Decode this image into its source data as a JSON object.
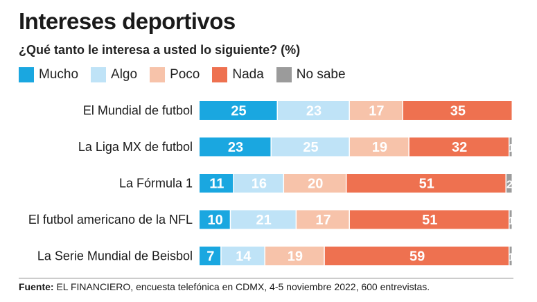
{
  "title": "Intereses deportivos",
  "subtitle": "¿Qué tanto le interesa a usted lo siguiente? (%)",
  "source_label": "Fuente:",
  "source_text": " EL FINANCIERO, encuesta telefónica en CDMX, 4-5 noviembre 2022, 600 entrevistas.",
  "legend": [
    {
      "name": "Mucho",
      "color": "#1aa7e0"
    },
    {
      "name": "Algo",
      "color": "#bfe3f7"
    },
    {
      "name": "Poco",
      "color": "#f7c3aa"
    },
    {
      "name": "Nada",
      "color": "#ee7150"
    },
    {
      "name": "No sabe",
      "color": "#9b9b9b"
    }
  ],
  "chart_data": {
    "type": "bar",
    "orientation": "horizontal",
    "stacked": true,
    "categories": [
      "El Mundial de futbol",
      "La Liga MX de futbol",
      "La Fórmula 1",
      "El futbol americano de la NFL",
      "La Serie Mundial de Beisbol"
    ],
    "series": [
      {
        "name": "Mucho",
        "values": [
          25,
          23,
          11,
          10,
          7
        ],
        "color": "#1aa7e0",
        "label_color": "#ffffff"
      },
      {
        "name": "Algo",
        "values": [
          23,
          25,
          16,
          21,
          14
        ],
        "color": "#bfe3f7",
        "label_color": "#ffffff"
      },
      {
        "name": "Poco",
        "values": [
          17,
          19,
          20,
          17,
          19
        ],
        "color": "#f7c3aa",
        "label_color": "#ffffff"
      },
      {
        "name": "Nada",
        "values": [
          35,
          32,
          51,
          51,
          59
        ],
        "color": "#ee7150",
        "label_color": "#ffffff"
      },
      {
        "name": "No sabe",
        "values": [
          null,
          1,
          2,
          1,
          1
        ],
        "color": "#9b9b9b",
        "label_color": "#ffffff"
      }
    ],
    "data_labels": true,
    "grid": false
  }
}
